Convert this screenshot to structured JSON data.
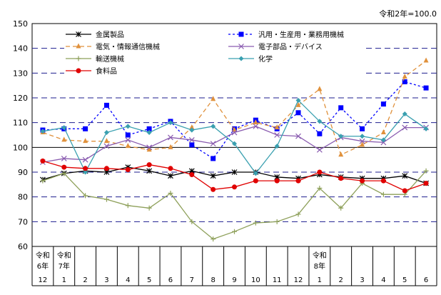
{
  "chart_data": {
    "type": "line",
    "note": "令和2年=100.0",
    "ylim": [
      60,
      150
    ],
    "yticks": [
      60,
      70,
      80,
      90,
      100,
      110,
      120,
      130,
      140,
      150
    ],
    "grid": "horizontal dashed",
    "legend_position": "top",
    "categories": [
      "12",
      "1",
      "2",
      "3",
      "4",
      "5",
      "6",
      "7",
      "8",
      "9",
      "10",
      "11",
      "12",
      "1",
      "2",
      "3",
      "4",
      "5",
      "6"
    ],
    "year_labels": [
      {
        "index": 0,
        "lines": [
          "令和",
          "6年"
        ]
      },
      {
        "index": 1,
        "lines": [
          "令和",
          "7年"
        ]
      },
      {
        "index": 13,
        "lines": [
          "令和",
          "8年"
        ]
      }
    ],
    "series": [
      {
        "name": "金属製品",
        "color": "#000000",
        "dash": "",
        "marker": "asterisk",
        "values": [
          87,
          89.5,
          90.5,
          90,
          92,
          90.5,
          88.5,
          90.5,
          88.5,
          90,
          90,
          88,
          87.5,
          89,
          88,
          87.5,
          87.5,
          88.5,
          85.5
        ]
      },
      {
        "name": "汎用・生産用・業務用機械",
        "color": "#0000ff",
        "dash": "3,3",
        "marker": "square",
        "values": [
          107,
          107.5,
          107.5,
          117,
          105,
          107.5,
          110.5,
          101,
          95.5,
          107.5,
          111,
          107.5,
          114,
          105.5,
          116,
          107.5,
          117.5,
          126.5,
          124
        ]
      },
      {
        "name": "電気・情報通信機械",
        "color": "#e0913c",
        "dash": "6,4",
        "marker": "triangle",
        "values": [
          106,
          103,
          102.5,
          102.5,
          100.5,
          99,
          100,
          108,
          119.5,
          107,
          110,
          108,
          117,
          123.5,
          97,
          101,
          106,
          128.5,
          135
        ]
      },
      {
        "name": "電子部品・デバイス",
        "color": "#8a5cb0",
        "dash": "",
        "marker": "x",
        "values": [
          94,
          95.5,
          95,
          100.5,
          103,
          100,
          104,
          103,
          101.5,
          106,
          108.5,
          105,
          104.5,
          99,
          104,
          102.5,
          102,
          108,
          108
        ]
      },
      {
        "name": "輸送機械",
        "color": "#8ea05a",
        "dash": "",
        "marker": "plus",
        "values": [
          86.5,
          89.5,
          80.5,
          79,
          76.5,
          75.5,
          81.5,
          70,
          63,
          66,
          69.5,
          70,
          73,
          83.5,
          75.5,
          85.5,
          81,
          81,
          90.5
        ]
      },
      {
        "name": "化学",
        "color": "#3aa0b0",
        "dash": "",
        "marker": "diamond",
        "values": [
          106.5,
          108,
          90,
          106,
          108.5,
          106,
          110,
          107,
          108.5,
          101.5,
          89.5,
          100.5,
          119,
          110.5,
          104.5,
          104.5,
          103,
          113.5,
          107.5
        ]
      },
      {
        "name": "食料品",
        "color": "#e00000",
        "dash": "",
        "marker": "circle",
        "values": [
          94.5,
          92,
          91.5,
          91.5,
          91,
          93,
          91.5,
          89,
          83,
          84,
          86.5,
          86.5,
          86.5,
          90,
          87.5,
          86.5,
          86.5,
          82.5,
          85.5
        ]
      }
    ]
  }
}
